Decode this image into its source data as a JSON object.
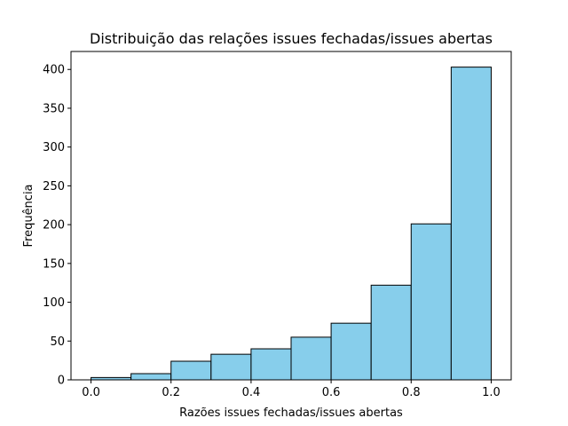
{
  "chart_data": {
    "type": "histogram",
    "title": "Distribuição das relações issues fechadas/issues abertas",
    "x_label": "Razões issues fechadas/issues abertas",
    "y_label": "Frequência",
    "bins": [
      0,
      0.1,
      0.2,
      0.3,
      0.4,
      0.5,
      0.6,
      0.7,
      0.8,
      0.9,
      1.0
    ],
    "counts": [
      3,
      8,
      24,
      33,
      40,
      55,
      73,
      122,
      201,
      403
    ],
    "color": "#87ceeb",
    "edgecolor": "#000000",
    "xlim": [
      -0.05,
      1.05
    ],
    "ylim": [
      0,
      423.15
    ],
    "xticks": [
      {
        "value": 0,
        "label": "0.0"
      },
      0.2,
      0.4,
      0.6,
      0.8,
      {
        "value": 1,
        "label": "1.0"
      }
    ],
    "yticks": [
      0,
      50,
      100,
      150,
      200,
      250,
      300,
      350,
      400
    ]
  }
}
